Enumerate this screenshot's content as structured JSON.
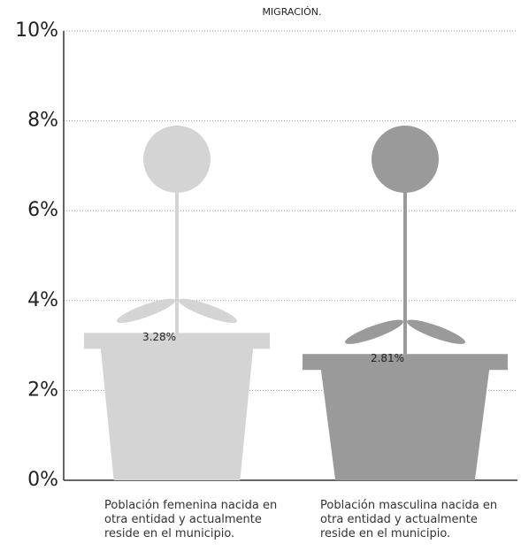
{
  "chart_data": {
    "type": "bar",
    "title": "MIGRACIÓN.",
    "categories": [
      "Población femenina nacida en otra entidad y actualmente reside en el municipio.",
      "Población masculina nacida en otra entidad y actualmente reside en el municipio."
    ],
    "values": [
      3.28,
      2.81
    ],
    "value_labels": [
      "3.28%",
      "2.81%"
    ],
    "colors": [
      "#d4d4d4",
      "#9a9a9a"
    ],
    "ylim": [
      0,
      10
    ],
    "yticks": [
      {
        "value": 0,
        "label": "0%"
      },
      {
        "value": 2,
        "label": "2%"
      },
      {
        "value": 4,
        "label": "4%"
      },
      {
        "value": 6,
        "label": "6%"
      },
      {
        "value": 8,
        "label": "8%"
      },
      {
        "value": 10,
        "label": "10%"
      }
    ],
    "grid": true
  }
}
